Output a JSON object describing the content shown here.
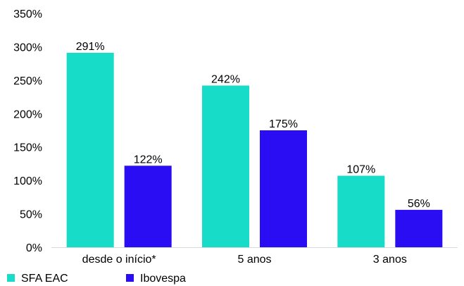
{
  "chart_data": {
    "type": "bar",
    "categories": [
      "desde o início*",
      "5 anos",
      "3 anos"
    ],
    "series": [
      {
        "name": "SFA EAC",
        "values": [
          291,
          242,
          107
        ],
        "labels": [
          "291%",
          "242%",
          "107%"
        ],
        "color": "#16dcc8"
      },
      {
        "name": "Ibovespa",
        "values": [
          122,
          175,
          56
        ],
        "labels": [
          "122%",
          "175%",
          "56%"
        ],
        "color": "#2a0df2"
      }
    ],
    "ylim": [
      0,
      350
    ],
    "yticks": [
      0,
      50,
      100,
      150,
      200,
      250,
      300,
      350
    ],
    "ytick_labels": [
      "0%",
      "50%",
      "100%",
      "150%",
      "200%",
      "250%",
      "300%",
      "350%"
    ],
    "grid": false,
    "legend_position": "bottom-left"
  }
}
